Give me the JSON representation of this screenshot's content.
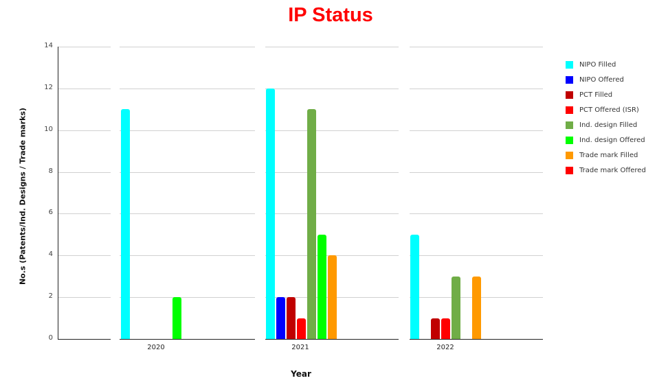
{
  "chart_data": {
    "type": "bar",
    "title": "IP Status",
    "xlabel": "Year",
    "ylabel": "No.s (Patents/Ind. Designs / Trade marks)",
    "ylim": [
      0,
      14
    ],
    "yticks": [
      0,
      2,
      4,
      6,
      8,
      10,
      12,
      14
    ],
    "grid": true,
    "legend_position": "right",
    "categories": [
      "2020",
      "2021",
      "2022"
    ],
    "series": [
      {
        "name": "NIPO Filled",
        "color": "#00FFFF",
        "values": [
          11,
          12,
          5
        ]
      },
      {
        "name": "NIPO Offered",
        "color": "#0000FF",
        "values": [
          0,
          2,
          0
        ]
      },
      {
        "name": "PCT Filled",
        "color": "#C00000",
        "values": [
          0,
          2,
          1
        ]
      },
      {
        "name": "PCT Offered (ISR)",
        "color": "#FF0000",
        "values": [
          0,
          1,
          1
        ]
      },
      {
        "name": "Ind. design Filled",
        "color": "#70AD47",
        "values": [
          0,
          11,
          3
        ]
      },
      {
        "name": "Ind. design Offered",
        "color": "#00FF00",
        "values": [
          2,
          5,
          0
        ]
      },
      {
        "name": "Trade mark Filled",
        "color": "#FF9900",
        "values": [
          0,
          4,
          3
        ]
      },
      {
        "name": "Trade mark Offered",
        "color": "#FF0000",
        "values": [
          0,
          0,
          0
        ]
      }
    ]
  },
  "title": "IP Status",
  "xlabel": "Year",
  "ylabel": "No.s (Patents/Ind. Designs / Trade marks)",
  "colors": {
    "title": "#FF0000",
    "grid": "#D0D0D0",
    "axis": "#222222"
  }
}
